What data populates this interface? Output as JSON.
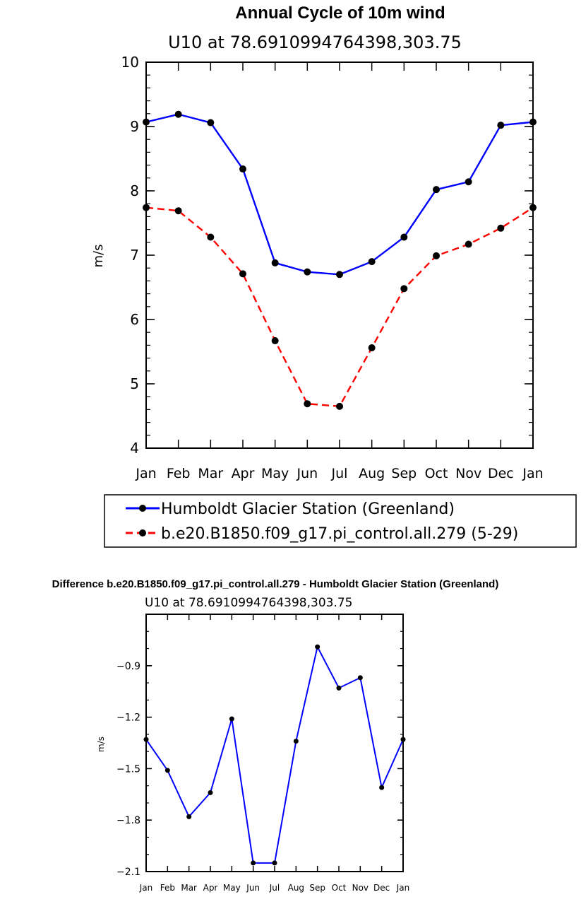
{
  "chart_data": [
    {
      "type": "line",
      "title": "Annual Cycle of 10m wind",
      "subtitle": "U10 at 78.6910994764398,303.75",
      "xlabel": "",
      "ylabel": "m/s",
      "categories": [
        "Jan",
        "Feb",
        "Mar",
        "Apr",
        "May",
        "Jun",
        "Jul",
        "Aug",
        "Sep",
        "Oct",
        "Nov",
        "Dec",
        "Jan"
      ],
      "ylim": [
        4,
        10
      ],
      "yticks": [
        "4",
        "5",
        "6",
        "7",
        "8",
        "9",
        "10"
      ],
      "grid": false,
      "legend_position": "bottom",
      "series": [
        {
          "name": "Humboldt Glacier Station (Greenland)",
          "color": "#0000ff",
          "dash": "solid",
          "values": [
            9.07,
            9.19,
            9.06,
            8.34,
            6.88,
            6.74,
            6.7,
            6.9,
            7.28,
            8.02,
            8.14,
            9.02,
            9.07
          ]
        },
        {
          "name": "b.e20.B1850.f09_g17.pi_control.all.279 (5-29)",
          "color": "#ff0000",
          "dash": "dashed",
          "values": [
            7.74,
            7.69,
            7.28,
            6.71,
            5.67,
            4.69,
            4.65,
            5.56,
            6.48,
            6.99,
            7.17,
            7.42,
            7.74
          ]
        }
      ]
    },
    {
      "type": "line",
      "title": "Difference b.e20.B1850.f09_g17.pi_control.all.279 - Humboldt Glacier Station (Greenland)",
      "subtitle": "U10 at 78.6910994764398,303.75",
      "xlabel": "",
      "ylabel": "m/s",
      "categories": [
        "Jan",
        "Feb",
        "Mar",
        "Apr",
        "May",
        "Jun",
        "Jul",
        "Aug",
        "Sep",
        "Oct",
        "Nov",
        "Dec",
        "Jan"
      ],
      "ylim": [
        -2.1,
        -0.6
      ],
      "yticks": [
        "-2.1",
        "-1.8",
        "-1.5",
        "-1.2",
        "-0.9"
      ],
      "grid": false,
      "series": [
        {
          "color": "#0000ff",
          "dash": "solid",
          "values": [
            -1.33,
            -1.51,
            -1.78,
            -1.64,
            -1.21,
            -2.05,
            -2.05,
            -1.34,
            -0.79,
            -1.03,
            -0.97,
            -1.61,
            -1.33
          ]
        }
      ]
    }
  ]
}
